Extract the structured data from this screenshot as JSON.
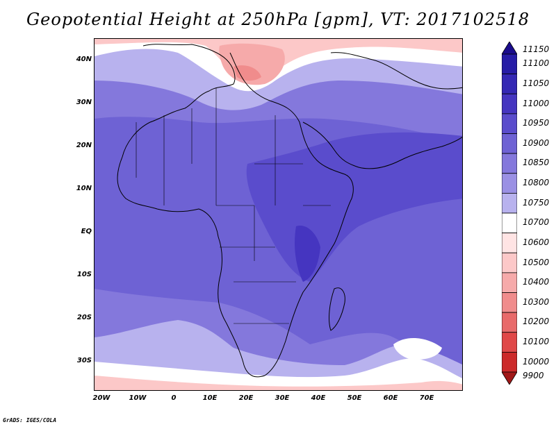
{
  "title": "Geopotential Height at 250hPa [gpm], VT: 2017102518",
  "credit": "GrADS: IGES/COLA",
  "lat_labels": [
    "40N",
    "30N",
    "20N",
    "10N",
    "EQ",
    "10S",
    "20S",
    "30S"
  ],
  "lon_labels": [
    "20W",
    "10W",
    "0",
    "10E",
    "20E",
    "30E",
    "40E",
    "50E",
    "60E",
    "70E"
  ],
  "colorbar": {
    "labels": [
      "11150",
      "11100",
      "11050",
      "11000",
      "10950",
      "10900",
      "10850",
      "10800",
      "10750",
      "10700",
      "10600",
      "10500",
      "10400",
      "10300",
      "10200",
      "10100",
      "10000",
      "9900"
    ],
    "colors": [
      "#1a0c8c",
      "#261ca6",
      "#3428b4",
      "#4535c0",
      "#5a4ccc",
      "#6e62d4",
      "#8478dc",
      "#9a90e4",
      "#b8b2ee",
      "#ffffff",
      "#ffe4e4",
      "#fcc8c8",
      "#f6aaaa",
      "#f08c8c",
      "#e86a6a",
      "#e04848",
      "#cc2a2a",
      "#a01818"
    ]
  }
}
